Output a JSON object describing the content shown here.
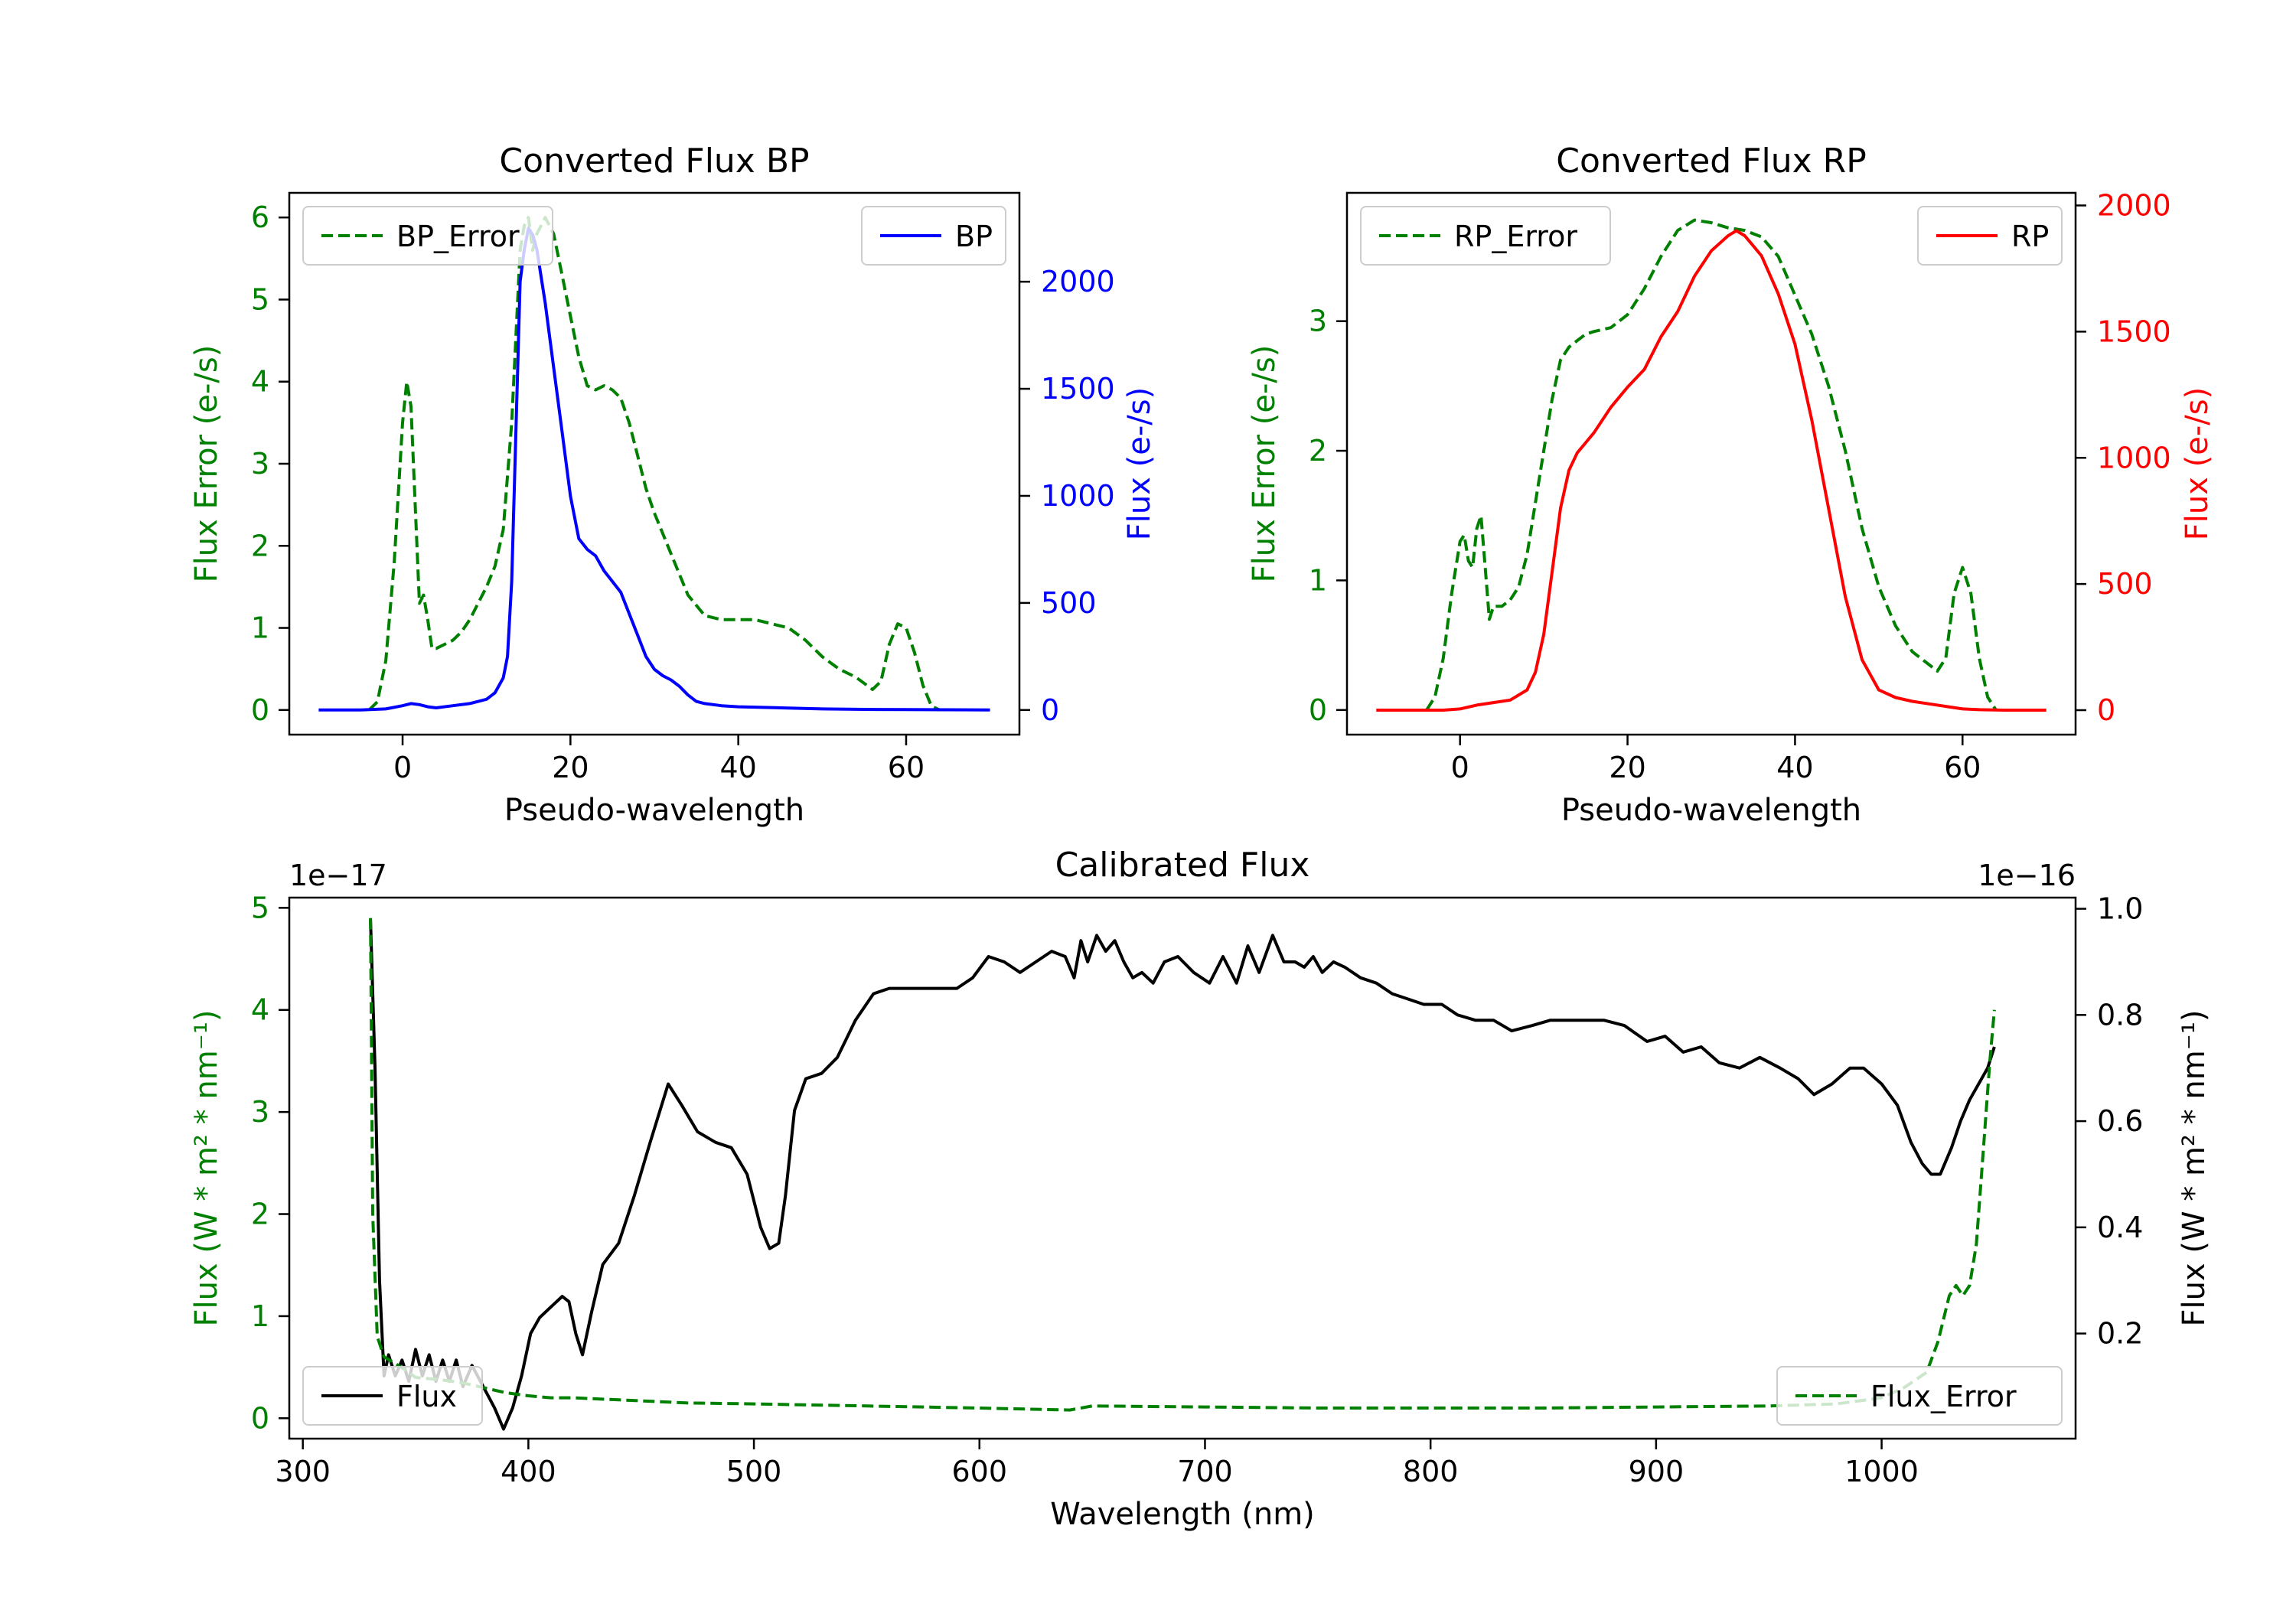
{
  "colors": {
    "green": "#008000",
    "blue": "#0000ff",
    "red": "#ff0000",
    "black": "#000000",
    "axis": "#000000"
  },
  "chart_data": [
    {
      "id": "bp",
      "type": "line",
      "title": "Converted Flux BP",
      "xlabel": "Pseudo-wavelength",
      "ylabel_left": "Flux Error (e-/s)",
      "ylabel_right": "Flux (e-/s)",
      "right_color": "#0000ff",
      "xlim": [
        -13.5,
        73.5
      ],
      "ylim_left": [
        -0.3,
        6.3
      ],
      "ylim_right": [
        -115,
        2415
      ],
      "xticks": [
        0,
        20,
        40,
        60
      ],
      "xtick_labels": [
        "0",
        "20",
        "40",
        "60"
      ],
      "yticks_left": [
        0,
        1,
        2,
        3,
        4,
        5,
        6
      ],
      "ytick_labels_left": [
        "0",
        "1",
        "2",
        "3",
        "4",
        "5",
        "6"
      ],
      "yticks_right": [
        0,
        500,
        1000,
        1500,
        2000
      ],
      "ytick_labels_right": [
        "0",
        "500",
        "1000",
        "1500",
        "2000"
      ],
      "legend_left": {
        "position": "top-left",
        "label": "BP_Error"
      },
      "legend_right": {
        "position": "top-right",
        "label": "BP"
      },
      "series": [
        {
          "name": "BP_Error",
          "axis": "left",
          "style": "dashed",
          "color": "#008000",
          "x": [
            -4,
            -3,
            -2,
            -1,
            0,
            0.5,
            1,
            1.5,
            2,
            2.5,
            3,
            3.5,
            4,
            5,
            6,
            7,
            8,
            9,
            10,
            11,
            12,
            13,
            14,
            14.5,
            15,
            15.5,
            16,
            17,
            18,
            19,
            20,
            21,
            22,
            23,
            24,
            25,
            26,
            27,
            28,
            29,
            30,
            32,
            34,
            36,
            38,
            40,
            42,
            44,
            46,
            48,
            50,
            52,
            54,
            56,
            57,
            58,
            59,
            60,
            61,
            62,
            63,
            64
          ],
          "values": [
            0.0,
            0.1,
            0.6,
            1.8,
            3.5,
            4.0,
            3.7,
            2.5,
            1.3,
            1.4,
            1.1,
            0.75,
            0.75,
            0.8,
            0.85,
            0.95,
            1.1,
            1.3,
            1.5,
            1.75,
            2.2,
            3.5,
            5.6,
            5.9,
            6.0,
            5.6,
            5.8,
            6.0,
            5.8,
            5.3,
            4.8,
            4.3,
            3.95,
            3.9,
            3.95,
            3.9,
            3.8,
            3.5,
            3.1,
            2.7,
            2.4,
            1.9,
            1.4,
            1.15,
            1.1,
            1.1,
            1.1,
            1.05,
            1.0,
            0.85,
            0.65,
            0.5,
            0.4,
            0.25,
            0.35,
            0.8,
            1.05,
            1.0,
            0.7,
            0.3,
            0.05,
            0.0
          ]
        },
        {
          "name": "BP",
          "axis": "right",
          "style": "solid",
          "color": "#0000ff",
          "x": [
            -10,
            -5,
            -2,
            0,
            1,
            2,
            3,
            4,
            6,
            8,
            10,
            11,
            12,
            12.5,
            13,
            13.5,
            14,
            14.5,
            15,
            15.5,
            16,
            17,
            18,
            19,
            20,
            21,
            22,
            23,
            24,
            25,
            26,
            27,
            28,
            29,
            30,
            31,
            32,
            33,
            34,
            35,
            36,
            38,
            40,
            45,
            50,
            55,
            60,
            65,
            70
          ],
          "values": [
            0,
            0,
            5,
            20,
            30,
            25,
            15,
            10,
            20,
            30,
            50,
            80,
            150,
            250,
            600,
            1300,
            2000,
            2150,
            2250,
            2220,
            2150,
            1900,
            1600,
            1300,
            1000,
            800,
            750,
            720,
            650,
            600,
            550,
            450,
            350,
            250,
            190,
            160,
            140,
            110,
            70,
            40,
            30,
            20,
            15,
            10,
            5,
            3,
            2,
            1,
            0
          ]
        }
      ]
    },
    {
      "id": "rp",
      "type": "line",
      "title": "Converted Flux RP",
      "xlabel": "Pseudo-wavelength",
      "ylabel_left": "Flux Error (e-/s)",
      "ylabel_right": "Flux (e-/s)",
      "right_color": "#ff0000",
      "xlim": [
        -13.5,
        73.5
      ],
      "ylim_left": [
        -0.19,
        3.99
      ],
      "ylim_right": [
        -97,
        2050
      ],
      "xticks": [
        0,
        20,
        40,
        60
      ],
      "xtick_labels": [
        "0",
        "20",
        "40",
        "60"
      ],
      "yticks_left": [
        0,
        1,
        2,
        3
      ],
      "ytick_labels_left": [
        "0",
        "1",
        "2",
        "3"
      ],
      "yticks_right": [
        0,
        500,
        1000,
        1500,
        2000
      ],
      "ytick_labels_right": [
        "0",
        "500",
        "1000",
        "1500",
        "2000"
      ],
      "legend_left": {
        "position": "top-left",
        "label": "RP_Error"
      },
      "legend_right": {
        "position": "top-right",
        "label": "RP"
      },
      "series": [
        {
          "name": "RP_Error",
          "axis": "left",
          "style": "dashed",
          "color": "#008000",
          "x": [
            -4,
            -3,
            -2,
            -1,
            0,
            0.5,
            1,
            1.5,
            2,
            2.5,
            3,
            3.5,
            4,
            5,
            6,
            7,
            8,
            9,
            10,
            11,
            12,
            13,
            14,
            15,
            16,
            18,
            20,
            22,
            24,
            26,
            28,
            30,
            32,
            34,
            36,
            38,
            40,
            42,
            44,
            46,
            48,
            50,
            52,
            54,
            56,
            57,
            58,
            59,
            60,
            61,
            62,
            63,
            64
          ],
          "values": [
            0.0,
            0.1,
            0.4,
            0.9,
            1.3,
            1.35,
            1.15,
            1.1,
            1.4,
            1.5,
            1.1,
            0.7,
            0.8,
            0.8,
            0.85,
            0.95,
            1.2,
            1.6,
            2.0,
            2.4,
            2.7,
            2.8,
            2.85,
            2.9,
            2.92,
            2.95,
            3.05,
            3.25,
            3.5,
            3.7,
            3.78,
            3.76,
            3.72,
            3.7,
            3.65,
            3.5,
            3.2,
            2.9,
            2.5,
            2.0,
            1.4,
            0.95,
            0.65,
            0.45,
            0.35,
            0.3,
            0.4,
            0.9,
            1.1,
            0.9,
            0.4,
            0.1,
            0.0
          ]
        },
        {
          "name": "RP",
          "axis": "right",
          "style": "solid",
          "color": "#ff0000",
          "x": [
            -10,
            -5,
            -2,
            0,
            2,
            4,
            6,
            8,
            9,
            10,
            11,
            12,
            13,
            14,
            15,
            16,
            18,
            20,
            22,
            24,
            26,
            28,
            30,
            32,
            33,
            34,
            36,
            38,
            40,
            42,
            44,
            46,
            48,
            50,
            52,
            54,
            56,
            58,
            60,
            62,
            65,
            70
          ],
          "values": [
            0,
            0,
            0,
            5,
            20,
            30,
            40,
            80,
            150,
            300,
            550,
            800,
            950,
            1020,
            1060,
            1100,
            1200,
            1280,
            1350,
            1480,
            1580,
            1720,
            1820,
            1880,
            1900,
            1880,
            1800,
            1650,
            1450,
            1150,
            800,
            450,
            200,
            80,
            50,
            35,
            25,
            15,
            5,
            2,
            0,
            0
          ]
        }
      ]
    },
    {
      "id": "calibrated",
      "type": "line",
      "title": "Calibrated Flux",
      "xlabel": "Wavelength (nm)",
      "ylabel_left": "Flux (W * m² * nm⁻¹)",
      "ylabel_right": "Flux (W * m² * nm⁻¹)",
      "left_label_color": "#008000",
      "right_label_color": "#000000",
      "offset_left": "1e−17",
      "offset_right": "1e−16",
      "xlim": [
        294,
        1086
      ],
      "ylim_left": [
        -0.2,
        5.1
      ],
      "ylim_right": [
        0.002,
        1.021
      ],
      "xticks": [
        300,
        400,
        500,
        600,
        700,
        800,
        900,
        1000
      ],
      "xtick_labels": [
        "300",
        "400",
        "500",
        "600",
        "700",
        "800",
        "900",
        "1000"
      ],
      "yticks_left": [
        0,
        1,
        2,
        3,
        4,
        5
      ],
      "ytick_labels_left": [
        "0",
        "1",
        "2",
        "3",
        "4",
        "5"
      ],
      "yticks_right": [
        0.2,
        0.4,
        0.6,
        0.8,
        1.0
      ],
      "ytick_labels_right": [
        "0.2",
        "0.4",
        "0.6",
        "0.8",
        "1.0"
      ],
      "legend_left": {
        "position": "bottom-left",
        "label": "Flux"
      },
      "legend_right": {
        "position": "bottom-right",
        "label": "Flux_Error"
      },
      "series": [
        {
          "name": "Flux",
          "axis": "right",
          "style": "solid",
          "color": "#000000",
          "x": [
            330,
            332,
            334,
            336,
            338,
            341,
            344,
            347,
            350,
            353,
            356,
            359,
            362,
            365,
            368,
            371,
            375,
            380,
            385,
            389,
            393,
            397,
            401,
            405,
            410,
            415,
            418,
            421,
            424,
            428,
            433,
            440,
            447,
            454,
            462,
            468,
            475,
            483,
            490,
            497,
            503,
            507,
            511,
            514,
            518,
            523,
            530,
            537,
            545,
            553,
            560,
            570,
            580,
            590,
            597,
            604,
            611,
            618,
            625,
            632,
            638,
            642,
            645,
            648,
            652,
            656,
            660,
            664,
            668,
            672,
            677,
            682,
            688,
            695,
            702,
            708,
            714,
            719,
            724,
            730,
            735,
            740,
            744,
            748,
            752,
            757,
            762,
            769,
            776,
            783,
            790,
            797,
            805,
            812,
            820,
            828,
            836,
            845,
            853,
            861,
            869,
            877,
            886,
            896,
            904,
            912,
            920,
            928,
            937,
            946,
            955,
            963,
            970,
            978,
            986,
            992,
            1000,
            1007,
            1013,
            1018,
            1022,
            1026,
            1031,
            1035,
            1039,
            1043,
            1047,
            1050
          ],
          "values": [
            0.98,
            0.7,
            0.3,
            0.12,
            0.16,
            0.12,
            0.15,
            0.11,
            0.17,
            0.12,
            0.16,
            0.11,
            0.15,
            0.11,
            0.15,
            0.1,
            0.14,
            0.1,
            0.06,
            0.02,
            0.06,
            0.12,
            0.2,
            0.23,
            0.25,
            0.27,
            0.26,
            0.2,
            0.16,
            0.24,
            0.33,
            0.37,
            0.46,
            0.56,
            0.67,
            0.63,
            0.58,
            0.56,
            0.55,
            0.5,
            0.4,
            0.36,
            0.37,
            0.46,
            0.62,
            0.68,
            0.69,
            0.72,
            0.79,
            0.84,
            0.85,
            0.85,
            0.85,
            0.85,
            0.87,
            0.91,
            0.9,
            0.88,
            0.9,
            0.92,
            0.91,
            0.87,
            0.94,
            0.9,
            0.95,
            0.92,
            0.94,
            0.9,
            0.87,
            0.88,
            0.86,
            0.9,
            0.91,
            0.88,
            0.86,
            0.91,
            0.86,
            0.93,
            0.88,
            0.95,
            0.9,
            0.9,
            0.89,
            0.91,
            0.88,
            0.9,
            0.89,
            0.87,
            0.86,
            0.84,
            0.83,
            0.82,
            0.82,
            0.8,
            0.79,
            0.79,
            0.77,
            0.78,
            0.79,
            0.79,
            0.79,
            0.79,
            0.78,
            0.75,
            0.76,
            0.73,
            0.74,
            0.71,
            0.7,
            0.72,
            0.7,
            0.68,
            0.65,
            0.67,
            0.7,
            0.7,
            0.67,
            0.63,
            0.56,
            0.52,
            0.5,
            0.5,
            0.55,
            0.6,
            0.64,
            0.67,
            0.7,
            0.74
          ]
        },
        {
          "name": "Flux_Error",
          "axis": "left",
          "style": "dashed",
          "color": "#008000",
          "x": [
            330,
            331,
            333,
            336,
            340,
            345,
            350,
            360,
            370,
            380,
            390,
            400,
            410,
            420,
            430,
            440,
            450,
            470,
            500,
            550,
            600,
            640,
            650,
            700,
            750,
            800,
            850,
            900,
            950,
            980,
            1000,
            1010,
            1020,
            1025,
            1030,
            1033,
            1036,
            1039,
            1042,
            1045,
            1048,
            1050
          ],
          "values": [
            4.9,
            2.0,
            0.8,
            0.6,
            0.55,
            0.48,
            0.4,
            0.38,
            0.35,
            0.3,
            0.25,
            0.22,
            0.2,
            0.2,
            0.19,
            0.18,
            0.17,
            0.15,
            0.14,
            0.12,
            0.1,
            0.08,
            0.12,
            0.11,
            0.1,
            0.1,
            0.1,
            0.11,
            0.12,
            0.14,
            0.2,
            0.3,
            0.45,
            0.75,
            1.2,
            1.3,
            1.2,
            1.3,
            1.7,
            2.6,
            3.5,
            4.0
          ]
        }
      ]
    }
  ]
}
